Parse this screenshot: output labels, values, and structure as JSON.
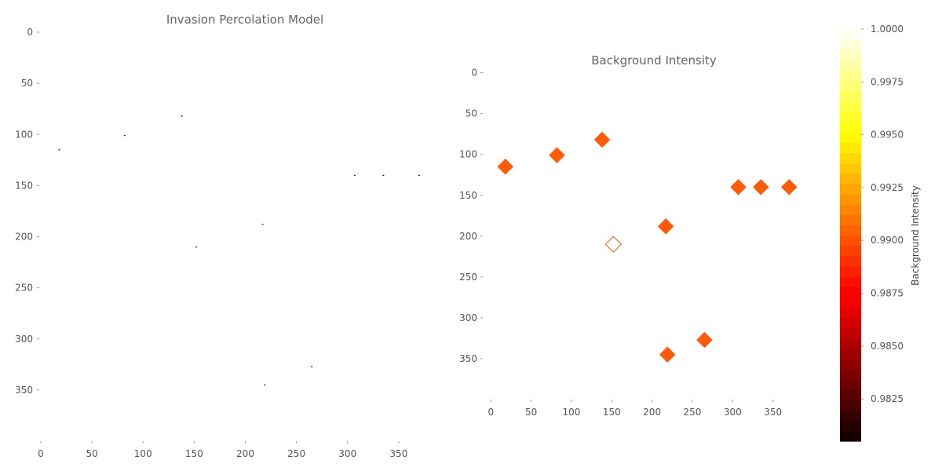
{
  "chart_data": [
    {
      "type": "heatmap",
      "title": "Invasion Percolation Model",
      "xlim": [
        0,
        400
      ],
      "ylim": [
        400,
        0
      ],
      "xticks": [
        0,
        50,
        100,
        150,
        200,
        250,
        300,
        350
      ],
      "yticks": [
        0,
        50,
        100,
        150,
        200,
        250,
        300,
        350
      ],
      "grid": false,
      "points": [
        {
          "x": 18,
          "y": 115
        },
        {
          "x": 82,
          "y": 101
        },
        {
          "x": 138,
          "y": 82
        },
        {
          "x": 152,
          "y": 210
        },
        {
          "x": 217,
          "y": 188
        },
        {
          "x": 219,
          "y": 345
        },
        {
          "x": 265,
          "y": 327
        },
        {
          "x": 307,
          "y": 140
        },
        {
          "x": 335,
          "y": 140
        },
        {
          "x": 370,
          "y": 140
        }
      ],
      "point_color": "#222222"
    },
    {
      "type": "scatter",
      "title": "Background Intensity",
      "xlim": [
        -10,
        400
      ],
      "ylim": [
        400,
        -15
      ],
      "xticks": [
        0,
        50,
        100,
        150,
        200,
        250,
        300,
        350
      ],
      "yticks": [
        0,
        50,
        100,
        150,
        200,
        250,
        300,
        350
      ],
      "grid": false,
      "marker": "diamond",
      "points": [
        {
          "x": 18,
          "y": 115,
          "filled": true
        },
        {
          "x": 82,
          "y": 101,
          "filled": true
        },
        {
          "x": 138,
          "y": 82,
          "filled": true
        },
        {
          "x": 152,
          "y": 210,
          "filled": false
        },
        {
          "x": 217,
          "y": 188,
          "filled": true
        },
        {
          "x": 219,
          "y": 345,
          "filled": true
        },
        {
          "x": 265,
          "y": 327,
          "filled": true
        },
        {
          "x": 307,
          "y": 140,
          "filled": true
        },
        {
          "x": 335,
          "y": 140,
          "filled": true
        },
        {
          "x": 370,
          "y": 140,
          "filled": true
        }
      ],
      "marker_color": "#ff5a0a",
      "colorbar": {
        "label": "Background Intensity",
        "range": [
          0.9805,
          1.0
        ],
        "ticks": [
          "0.9825",
          "0.9850",
          "0.9875",
          "0.9900",
          "0.9925",
          "0.9950",
          "0.9975",
          "1.0000"
        ],
        "tick_values": [
          0.9825,
          0.985,
          0.9875,
          0.99,
          0.9925,
          0.995,
          0.9975,
          1.0
        ],
        "colormap": "hot"
      }
    }
  ]
}
